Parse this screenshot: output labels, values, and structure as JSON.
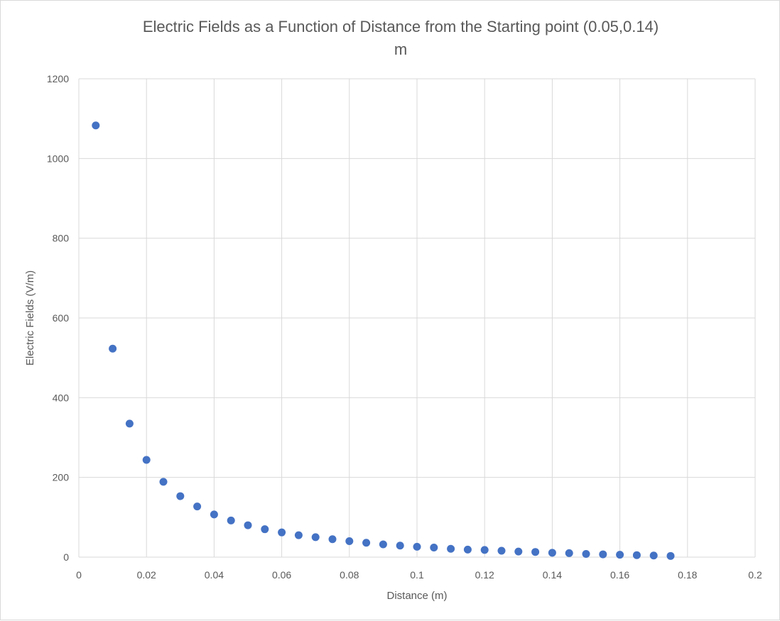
{
  "chart_data": {
    "type": "scatter",
    "title": "Electric Fields as a Function of Distance from the Starting point (0.05,0.14)",
    "title_line2": "m",
    "xlabel": "Distance (m)",
    "ylabel": "Electric Fields (V/m)",
    "xlim": [
      0,
      0.2
    ],
    "ylim": [
      0,
      1200
    ],
    "x_ticks": [
      "0",
      "0.02",
      "0.04",
      "0.06",
      "0.08",
      "0.1",
      "0.12",
      "0.14",
      "0.16",
      "0.18",
      "0.2"
    ],
    "y_ticks": [
      "0",
      "200",
      "400",
      "600",
      "800",
      "1000",
      "1200"
    ],
    "grid": true,
    "marker_color": "#4472C4",
    "series": [
      {
        "x": [
          0.005,
          0.01,
          0.015,
          0.02,
          0.025,
          0.03,
          0.035,
          0.04,
          0.045,
          0.05,
          0.055,
          0.06,
          0.065,
          0.07,
          0.075,
          0.08,
          0.085,
          0.09,
          0.095,
          0.1,
          0.105,
          0.11,
          0.115,
          0.12,
          0.125,
          0.13,
          0.135,
          0.14,
          0.145,
          0.15,
          0.155,
          0.16,
          0.165,
          0.17,
          0.175
        ],
        "y": [
          1083,
          523,
          335,
          244,
          189,
          153,
          127,
          107,
          92,
          80,
          70,
          62,
          55,
          50,
          45,
          40,
          36,
          32,
          29,
          26,
          24,
          21,
          19,
          18,
          16,
          14,
          13,
          11,
          10,
          8,
          7,
          6,
          5,
          4,
          3
        ]
      }
    ]
  }
}
